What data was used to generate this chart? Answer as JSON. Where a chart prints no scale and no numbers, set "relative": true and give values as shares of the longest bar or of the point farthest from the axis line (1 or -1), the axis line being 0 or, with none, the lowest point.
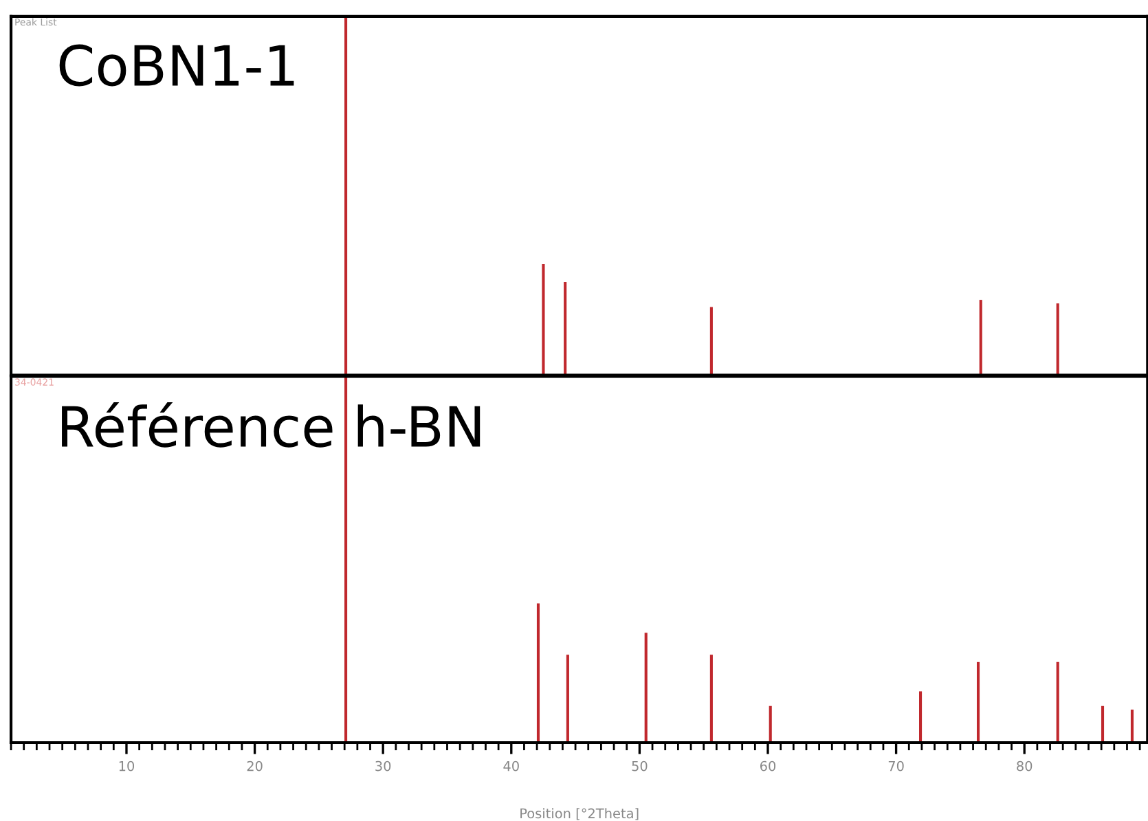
{
  "chart_data": [
    {
      "type": "bar",
      "title": "CoBN1-1",
      "annotations": [
        "Peak List"
      ],
      "relative": true,
      "x": [
        27.1,
        42.5,
        44.2,
        55.6,
        76.6,
        82.6
      ],
      "series": [
        {
          "color": "#c0282d",
          "values": [
            1,
            0.31,
            0.26,
            0.19,
            0.21,
            0.2
          ]
        }
      ],
      "xlim": [
        1,
        89.6
      ],
      "xticks": [
        10,
        20,
        30,
        40,
        50,
        60,
        70,
        80
      ],
      "tick_labels": false,
      "grid": false,
      "legend": false
    },
    {
      "type": "bar",
      "title": "Référence h-BN",
      "annotations": [
        "34-0421"
      ],
      "relative": true,
      "x": [
        27.1,
        42.1,
        44.4,
        50.5,
        55.6,
        60.2,
        71.9,
        76.4,
        82.6,
        86.1,
        88.4
      ],
      "series": [
        {
          "color": "#c0282d",
          "values": [
            1,
            0.38,
            0.24,
            0.3,
            0.24,
            0.1,
            0.14,
            0.22,
            0.22,
            0.1,
            0.09
          ]
        }
      ],
      "xlim": [
        1,
        89.6
      ],
      "xticks": [
        10,
        20,
        30,
        40,
        50,
        60,
        70,
        80
      ],
      "xlabel": "Position [°2Theta]",
      "tick_labels": "x",
      "grid": false,
      "legend": false
    }
  ]
}
